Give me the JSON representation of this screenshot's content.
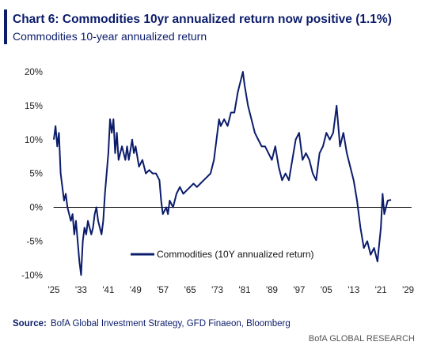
{
  "chart_data": {
    "type": "line",
    "title": "Chart 6: Commodities 10yr annualized return now positive (1.1%)",
    "subtitle": "Commodities 10-year annualized return",
    "source_label": "Source:",
    "source": "BofA Global Investment Strategy, GFD Finaeon, Bloomberg",
    "credit": "BofA GLOBAL RESEARCH",
    "legend": "lower center",
    "xlim": [
      1924,
      2030
    ],
    "ylim": [
      -10.5,
      21
    ],
    "xticks": [
      {
        "value": 1925,
        "label": "'25"
      },
      {
        "value": 1933,
        "label": "'33"
      },
      {
        "value": 1941,
        "label": "'41"
      },
      {
        "value": 1949,
        "label": "'49"
      },
      {
        "value": 1957,
        "label": "'57"
      },
      {
        "value": 1965,
        "label": "'65"
      },
      {
        "value": 1973,
        "label": "'73"
      },
      {
        "value": 1981,
        "label": "'81"
      },
      {
        "value": 1989,
        "label": "'89"
      },
      {
        "value": 1997,
        "label": "'97"
      },
      {
        "value": 2005,
        "label": "'05"
      },
      {
        "value": 2013,
        "label": "'13"
      },
      {
        "value": 2021,
        "label": "'21"
      },
      {
        "value": 2029,
        "label": "'29"
      }
    ],
    "yticks": [
      {
        "value": -10,
        "label": "-10%"
      },
      {
        "value": -5,
        "label": "-5%"
      },
      {
        "value": 0,
        "label": "0%"
      },
      {
        "value": 5,
        "label": "5%"
      },
      {
        "value": 10,
        "label": "10%"
      },
      {
        "value": 15,
        "label": "15%"
      },
      {
        "value": 20,
        "label": "20%"
      }
    ],
    "x": [
      1925,
      1925.5,
      1926,
      1926.5,
      1927,
      1928,
      1928.5,
      1929,
      1930,
      1930.5,
      1931,
      1931.5,
      1932,
      1932.5,
      1933,
      1933.5,
      1934,
      1934.5,
      1935,
      1935.5,
      1936,
      1936.5,
      1937,
      1937.5,
      1938,
      1939,
      1939.5,
      1940,
      1941,
      1941.5,
      1942,
      1942.5,
      1943,
      1943.5,
      1944,
      1945,
      1946,
      1946.5,
      1947,
      1948,
      1948.5,
      1949,
      1950,
      1951,
      1952,
      1953,
      1954,
      1955,
      1956,
      1956.5,
      1957,
      1958,
      1958.5,
      1959,
      1960,
      1961,
      1962,
      1963,
      1964,
      1965,
      1966,
      1967,
      1968,
      1969,
      1970,
      1971,
      1972,
      1973,
      1973.5,
      1974,
      1975,
      1976,
      1977,
      1978,
      1979,
      1980,
      1980.5,
      1981,
      1982,
      1983,
      1984,
      1985,
      1986,
      1987,
      1988,
      1989,
      1990,
      1991,
      1992,
      1993,
      1994,
      1995,
      1996,
      1997,
      1998,
      1999,
      2000,
      2001,
      2002,
      2003,
      2004,
      2005,
      2006,
      2007,
      2008,
      2009,
      2010,
      2011,
      2012,
      2013,
      2014,
      2015,
      2016,
      2017,
      2018,
      2019,
      2020,
      2021,
      2021.5,
      2022,
      2023,
      2024
    ],
    "series": [
      {
        "name": "Commodities (10Y annualized return)",
        "color": "#0b1c6b",
        "values": [
          10,
          12,
          9,
          11,
          5,
          1,
          2,
          0,
          -2,
          -1,
          -4,
          -2,
          -5,
          -8,
          -10,
          -5,
          -3,
          -4,
          -2,
          -3,
          -4,
          -3,
          -1,
          0,
          -2,
          -4,
          -2,
          2,
          8,
          13,
          11,
          13,
          8,
          11,
          7,
          9,
          7,
          9,
          7,
          10,
          8,
          9,
          6,
          7,
          5,
          5.5,
          5,
          5,
          4,
          1,
          -1,
          0,
          -1,
          1,
          0,
          2,
          3,
          2,
          2.5,
          3,
          3.5,
          3,
          3.5,
          4,
          4.5,
          5,
          7,
          11,
          13,
          12,
          13,
          12,
          14,
          14,
          17,
          19,
          20,
          18,
          15,
          13,
          11,
          10,
          9,
          9,
          8,
          7,
          9,
          6,
          4,
          5,
          4,
          7,
          10,
          11,
          7,
          8,
          7,
          5,
          4,
          8,
          9,
          11,
          10,
          11,
          15,
          9,
          11,
          8,
          6,
          4,
          1,
          -3,
          -6,
          -5,
          -7,
          -6,
          -8,
          -3,
          2,
          -1,
          1,
          1.1
        ]
      }
    ]
  }
}
